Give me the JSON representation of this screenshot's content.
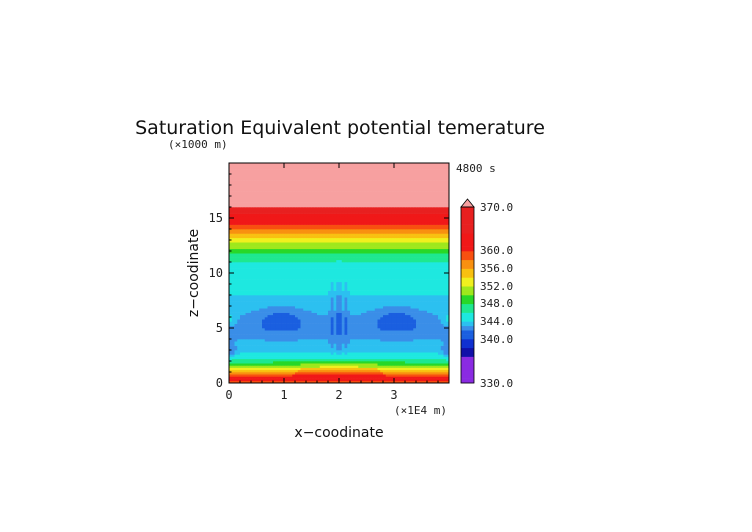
{
  "chart_data": {
    "type": "heatmap",
    "title": "Saturation Equivalent potential temerature",
    "xlabel": "x−coodinate",
    "ylabel": "z−coodinate",
    "x_unit": "(×1E4 m)",
    "y_unit": "(×1000 m)",
    "time_label": "4800 s",
    "xlim": [
      0,
      4
    ],
    "ylim": [
      0,
      20
    ],
    "x_ticks": [
      0,
      1,
      2,
      3
    ],
    "y_ticks": [
      0,
      5,
      10,
      15
    ],
    "colorbar": {
      "min": 330,
      "max": 370,
      "extend": "max",
      "tick_labels": [
        "370.0",
        "360.0",
        "356.0",
        "352.0",
        "348.0",
        "344.0",
        "340.0",
        "330.0"
      ],
      "levels": [
        {
          "value": 330,
          "color": "#8a2be2"
        },
        {
          "value": 336,
          "color": "#1010a8"
        },
        {
          "value": 338,
          "color": "#1030d0"
        },
        {
          "value": 340,
          "color": "#1a5fe0"
        },
        {
          "value": 342,
          "color": "#3a8ee8"
        },
        {
          "value": 343,
          "color": "#2cc0f0"
        },
        {
          "value": 344,
          "color": "#1ee8e0"
        },
        {
          "value": 346,
          "color": "#1ee890"
        },
        {
          "value": 348,
          "color": "#28d828"
        },
        {
          "value": 350,
          "color": "#9fe81c"
        },
        {
          "value": 352,
          "color": "#f0f01e"
        },
        {
          "value": 354,
          "color": "#f8c010"
        },
        {
          "value": 356,
          "color": "#f89010"
        },
        {
          "value": 358,
          "color": "#f85010"
        },
        {
          "value": 360,
          "color": "#f01818"
        },
        {
          "value": 364,
          "color": "#e82020"
        },
        {
          "value": 370,
          "color": "#f7a0a0"
        }
      ]
    },
    "profile": {
      "description_free": true,
      "z": [
        0,
        0.5,
        1,
        1.5,
        2,
        2.5,
        3,
        4,
        5,
        6,
        7,
        8,
        9,
        10,
        11,
        11.5,
        12,
        12.5,
        13,
        13.5,
        14,
        14.5,
        15,
        15.5,
        16,
        20
      ],
      "theta": [
        358,
        362,
        356,
        350,
        347,
        344.5,
        343.5,
        343,
        342.5,
        343,
        343.5,
        344,
        344.5,
        345,
        346,
        347,
        348.5,
        351,
        353,
        355,
        357.5,
        360,
        362,
        364,
        370,
        370
      ]
    }
  }
}
